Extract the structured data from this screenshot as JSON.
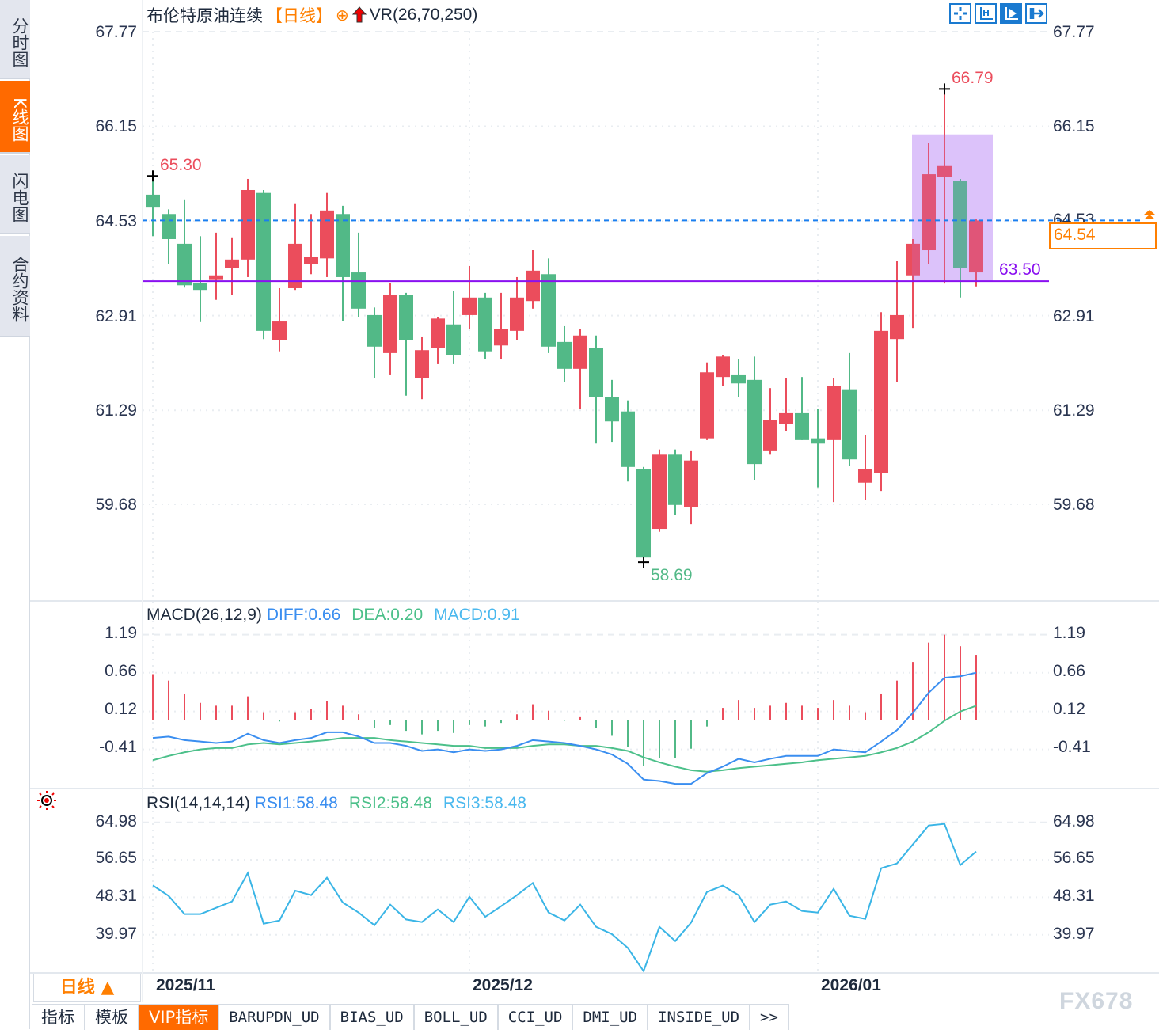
{
  "sidebar": {
    "items": [
      {
        "label": "分时图",
        "active": false
      },
      {
        "label": "K线图",
        "active": true
      },
      {
        "label": "闪电图",
        "active": false
      },
      {
        "label": "合约资料",
        "active": false
      }
    ]
  },
  "header": {
    "title": "布伦特原油连续",
    "period": "【日线】",
    "indicator": "VR(26,70,250)",
    "icons": [
      "crosshair-circle-icon",
      "red-up-arrow-icon"
    ]
  },
  "toolbar": {
    "icons": [
      "move-cross-icon",
      "zoom-axis-icon",
      "play-axis-icon",
      "exit-right-icon"
    ],
    "active_index": 2
  },
  "colors": {
    "up": "#eb4d5c",
    "down": "#52b987",
    "diff": "#3a8ef0",
    "dea": "#4cc08a",
    "rsi": "#3ab5e6",
    "highlight": "#e6d2fb",
    "support_line": "#8a10f0",
    "last_price": "#ff7f00",
    "dashed": "#1a7ff0"
  },
  "price_axis": {
    "ticks": [
      "67.77",
      "66.15",
      "64.53",
      "62.91",
      "61.29",
      "59.68"
    ]
  },
  "last_price": "64.54",
  "support_label": "63.50",
  "annotations": {
    "high_first": "65.30",
    "high_max": "66.79",
    "low_min": "58.69"
  },
  "macd": {
    "header": "MACD(26,12,9)",
    "diff_label": "DIFF:0.66",
    "dea_label": "DEA:0.20",
    "macd_label": "MACD:0.91",
    "ticks": [
      "1.19",
      "0.66",
      "0.12",
      "-0.41"
    ]
  },
  "rsi": {
    "header": "RSI(14,14,14)",
    "rsi1_label": "RSI1:58.48",
    "rsi2_label": "RSI2:58.48",
    "rsi3_label": "RSI3:58.48",
    "ticks": [
      "64.98",
      "56.65",
      "48.31",
      "39.97"
    ]
  },
  "dates": [
    "2025/11",
    "2025/12",
    "2026/01"
  ],
  "period_button": "日线 ▲",
  "tabs": [
    "指标",
    "模板",
    "VIP指标",
    "BARUPDN_UD",
    "BIAS_UD",
    "BOLL_UD",
    "CCI_UD",
    "DMI_UD",
    "INSIDE_UD",
    ">>"
  ],
  "watermark": "FX678",
  "chart_data": {
    "type": "candlestick",
    "title": "布伦特原油连续",
    "ylim": [
      58.5,
      67.77
    ],
    "date_labels": {
      "2025/11": 0,
      "2025/12": 20,
      "2026/01": 42
    },
    "ohlc": [
      [
        64.98,
        65.3,
        64.27,
        64.76
      ],
      [
        64.65,
        64.73,
        63.8,
        64.22
      ],
      [
        64.14,
        64.9,
        63.39,
        63.43
      ],
      [
        63.47,
        64.27,
        62.8,
        63.35
      ],
      [
        63.52,
        64.33,
        63.18,
        63.6
      ],
      [
        63.73,
        64.25,
        63.27,
        63.87
      ],
      [
        63.87,
        65.25,
        63.57,
        65.06
      ],
      [
        65.01,
        65.06,
        62.51,
        62.65
      ],
      [
        62.49,
        63.38,
        62.3,
        62.81
      ],
      [
        63.38,
        64.82,
        63.35,
        64.14
      ],
      [
        63.79,
        64.65,
        63.62,
        63.92
      ],
      [
        63.89,
        65.01,
        63.57,
        64.71
      ],
      [
        64.65,
        64.79,
        62.81,
        63.57
      ],
      [
        63.65,
        64.33,
        62.89,
        63.03
      ],
      [
        62.92,
        63.05,
        61.84,
        62.38
      ],
      [
        62.27,
        63.47,
        61.89,
        63.27
      ],
      [
        63.27,
        63.3,
        61.54,
        62.49
      ],
      [
        61.84,
        62.54,
        61.48,
        62.32
      ],
      [
        62.35,
        62.89,
        62.08,
        62.86
      ],
      [
        62.76,
        63.33,
        62.08,
        62.24
      ],
      [
        62.92,
        63.76,
        62.68,
        63.22
      ],
      [
        63.22,
        63.3,
        62.16,
        62.3
      ],
      [
        62.4,
        63.3,
        62.16,
        62.68
      ],
      [
        62.65,
        63.57,
        62.49,
        63.22
      ],
      [
        63.16,
        64.03,
        63.03,
        63.68
      ],
      [
        63.62,
        63.89,
        62.27,
        62.38
      ],
      [
        62.46,
        62.73,
        61.78,
        62.0
      ],
      [
        62.0,
        62.68,
        61.32,
        62.57
      ],
      [
        62.35,
        62.57,
        60.72,
        61.51
      ],
      [
        61.51,
        61.81,
        60.75,
        61.1
      ],
      [
        61.27,
        61.46,
        60.07,
        60.32
      ],
      [
        60.29,
        60.32,
        58.69,
        58.77
      ],
      [
        59.26,
        60.62,
        59.21,
        60.53
      ],
      [
        60.53,
        60.62,
        59.5,
        59.67
      ],
      [
        59.64,
        60.59,
        59.34,
        60.43
      ],
      [
        60.81,
        62.11,
        60.78,
        61.94
      ],
      [
        61.86,
        62.24,
        61.7,
        62.21
      ],
      [
        61.89,
        62.16,
        61.51,
        61.75
      ],
      [
        61.81,
        62.21,
        60.1,
        60.37
      ],
      [
        60.59,
        61.67,
        60.53,
        61.13
      ],
      [
        61.05,
        61.84,
        60.94,
        61.24
      ],
      [
        61.24,
        61.86,
        60.78,
        60.78
      ],
      [
        60.81,
        61.32,
        59.97,
        60.72
      ],
      [
        60.78,
        61.84,
        59.72,
        61.7
      ],
      [
        61.65,
        62.27,
        60.34,
        60.45
      ],
      [
        60.05,
        60.86,
        59.75,
        60.29
      ],
      [
        60.21,
        62.97,
        59.91,
        62.65
      ],
      [
        62.51,
        63.84,
        61.78,
        62.92
      ],
      [
        63.6,
        64.22,
        62.7,
        64.14
      ],
      [
        64.03,
        65.87,
        63.79,
        65.33
      ],
      [
        65.28,
        66.79,
        63.46,
        65.47
      ],
      [
        65.22,
        65.25,
        63.22,
        63.73
      ],
      [
        63.65,
        64.57,
        63.41,
        64.54
      ]
    ],
    "highlight_range": [
      49,
      52
    ],
    "support_level": 63.5,
    "last_price_level": 64.54,
    "macd_series": {
      "diff": [
        -0.25,
        -0.23,
        -0.28,
        -0.3,
        -0.32,
        -0.3,
        -0.19,
        -0.28,
        -0.32,
        -0.28,
        -0.25,
        -0.17,
        -0.17,
        -0.23,
        -0.32,
        -0.32,
        -0.36,
        -0.43,
        -0.41,
        -0.45,
        -0.41,
        -0.43,
        -0.41,
        -0.36,
        -0.28,
        -0.3,
        -0.32,
        -0.36,
        -0.41,
        -0.48,
        -0.61,
        -0.83,
        -0.85,
        -0.89,
        -0.89,
        -0.74,
        -0.65,
        -0.54,
        -0.59,
        -0.54,
        -0.5,
        -0.5,
        -0.5,
        -0.41,
        -0.43,
        -0.45,
        -0.3,
        -0.14,
        0.1,
        0.38,
        0.59,
        0.61,
        0.66
      ],
      "dea": [
        -0.56,
        -0.5,
        -0.45,
        -0.41,
        -0.39,
        -0.39,
        -0.34,
        -0.32,
        -0.34,
        -0.32,
        -0.3,
        -0.28,
        -0.25,
        -0.25,
        -0.25,
        -0.28,
        -0.3,
        -0.32,
        -0.34,
        -0.36,
        -0.36,
        -0.39,
        -0.39,
        -0.39,
        -0.36,
        -0.34,
        -0.34,
        -0.36,
        -0.36,
        -0.39,
        -0.43,
        -0.52,
        -0.59,
        -0.65,
        -0.7,
        -0.72,
        -0.7,
        -0.67,
        -0.65,
        -0.63,
        -0.61,
        -0.59,
        -0.56,
        -0.54,
        -0.52,
        -0.5,
        -0.45,
        -0.39,
        -0.3,
        -0.17,
        -0.01,
        0.12,
        0.2
      ],
      "macd": [
        0.64,
        0.55,
        0.37,
        0.24,
        0.2,
        0.2,
        0.33,
        0.11,
        -0.02,
        0.11,
        0.15,
        0.26,
        0.2,
        0.08,
        -0.11,
        -0.07,
        -0.15,
        -0.2,
        -0.15,
        -0.18,
        -0.07,
        -0.09,
        -0.04,
        0.08,
        0.22,
        0.13,
        -0.01,
        0.04,
        -0.11,
        -0.22,
        -0.38,
        -0.64,
        -0.53,
        -0.53,
        -0.4,
        -0.09,
        0.17,
        0.28,
        0.17,
        0.2,
        0.24,
        0.2,
        0.17,
        0.28,
        0.2,
        0.11,
        0.37,
        0.55,
        0.81,
        1.08,
        1.19,
        1.03,
        0.91
      ]
    },
    "rsi_series": [
      50.95,
      48.61,
      44.56,
      44.56,
      45.97,
      47.37,
      53.71,
      42.45,
      43.15,
      49.78,
      48.78,
      52.66,
      47.14,
      44.91,
      42.09,
      46.67,
      43.38,
      42.8,
      45.61,
      42.8,
      48.43,
      43.97,
      46.32,
      48.78,
      51.48,
      44.91,
      43.15,
      46.67,
      41.74,
      40.1,
      37.05,
      31.88,
      41.74,
      38.57,
      42.68,
      49.49,
      50.9,
      48.78,
      42.8,
      46.67,
      47.37,
      45.26,
      44.91,
      50.19,
      44.21,
      43.5,
      54.77,
      55.83,
      60.05,
      64.28,
      64.63,
      55.47,
      58.48
    ]
  }
}
